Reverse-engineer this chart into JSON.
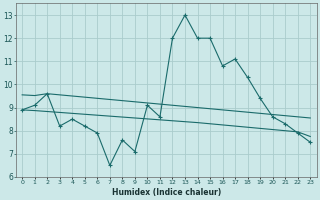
{
  "xlabel": "Humidex (Indice chaleur)",
  "background_color": "#cce8e8",
  "grid_color": "#aacccc",
  "line_color": "#1a6b6b",
  "x_values": [
    0,
    1,
    2,
    3,
    4,
    5,
    6,
    7,
    8,
    9,
    10,
    11,
    12,
    13,
    14,
    15,
    16,
    17,
    18,
    19,
    20,
    21,
    22,
    23
  ],
  "line_main": [
    8.9,
    9.1,
    9.6,
    8.2,
    8.5,
    8.2,
    7.9,
    6.5,
    7.6,
    7.1,
    9.1,
    8.6,
    12.0,
    13.0,
    12.0,
    12.0,
    10.8,
    11.1,
    10.3,
    9.4,
    8.6,
    8.3,
    7.9,
    7.5
  ],
  "line_upper": [
    9.55,
    9.52,
    9.6,
    9.55,
    9.5,
    9.45,
    9.4,
    9.35,
    9.3,
    9.25,
    9.2,
    9.15,
    9.1,
    9.05,
    9.0,
    8.95,
    8.9,
    8.85,
    8.8,
    8.75,
    8.7,
    8.65,
    8.6,
    8.55
  ],
  "line_lower": [
    8.9,
    8.87,
    8.83,
    8.79,
    8.75,
    8.71,
    8.67,
    8.63,
    8.59,
    8.55,
    8.51,
    8.47,
    8.43,
    8.39,
    8.35,
    8.3,
    8.25,
    8.2,
    8.15,
    8.1,
    8.05,
    8.0,
    7.95,
    7.75
  ],
  "ylim": [
    6,
    13.5
  ],
  "yticks": [
    6,
    7,
    8,
    9,
    10,
    11,
    12,
    13
  ],
  "xlim": [
    -0.5,
    23.5
  ],
  "figsize": [
    3.2,
    2.0
  ],
  "dpi": 100
}
